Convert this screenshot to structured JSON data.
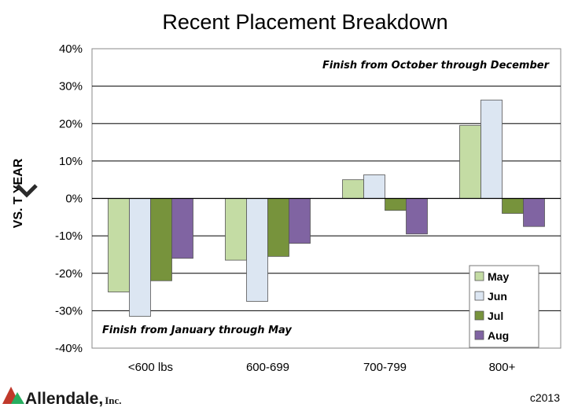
{
  "chart_data": {
    "type": "bar",
    "title": "Recent Placement Breakdown",
    "ylabel": "VS. T YEAR",
    "xlabel": "",
    "categories": [
      "<600 lbs",
      "600-699",
      "700-799",
      "800+"
    ],
    "series": [
      {
        "name": "May",
        "values": [
          -25,
          -16.5,
          5,
          19.5
        ],
        "color": "#c4dca4"
      },
      {
        "name": "Jun",
        "values": [
          -31.5,
          -27.5,
          6.3,
          26.3
        ],
        "color": "#dce6f2"
      },
      {
        "name": "Jul",
        "values": [
          -22,
          -15.5,
          -3.2,
          -4
        ],
        "color": "#77933c"
      },
      {
        "name": "Aug",
        "values": [
          -16,
          -12,
          -9.5,
          -7.5
        ],
        "color": "#8064a2"
      }
    ],
    "ylim": [
      -40,
      40
    ],
    "yticks": [
      -40,
      -30,
      -20,
      -10,
      0,
      10,
      20,
      30,
      40
    ],
    "ytick_format": "percent",
    "grid": true,
    "legend_position": "bottom-right",
    "annotations": {
      "top": "Finish from October through December",
      "bottom": "Finish from January through May"
    }
  },
  "footer": {
    "logo_name": "Allendale,",
    "logo_suffix": "Inc.",
    "copyright": "c2013"
  }
}
